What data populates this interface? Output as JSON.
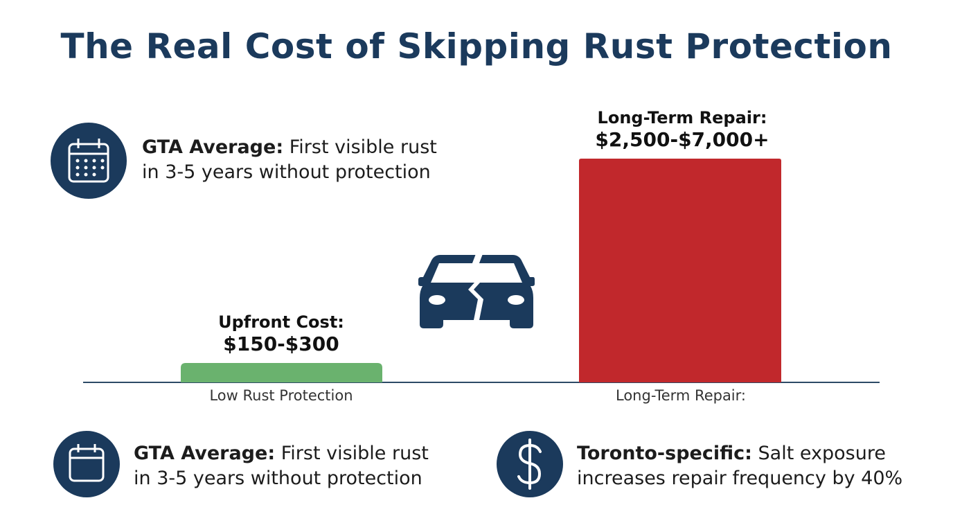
{
  "title": "The Real Cost of Skipping Rust Protection",
  "callouts": [
    {
      "bold": "GTA Average:",
      "text": "First visible rust in 3-5 years without protection"
    },
    {
      "bold": "GTA Average:",
      "text": "First visible rust in 3-5 years without protection"
    },
    {
      "bold": "Toronto-specific:",
      "text": "Salt exposure increases repair frequency by 40%"
    }
  ],
  "bars": [
    {
      "heading": "Upfront Cost:",
      "amount": "$150-$300",
      "label": "Low Rust Protection"
    },
    {
      "heading": "Long-Term Repair:",
      "amount": "$2,500-$7,000+",
      "label": "Long-Term Repair:"
    }
  ]
}
